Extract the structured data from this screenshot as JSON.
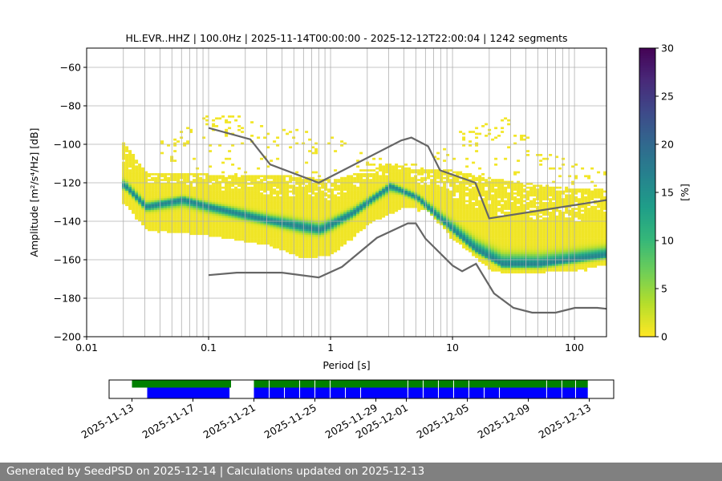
{
  "chart_data": [
    {
      "type": "heatmap",
      "title": "HL.EVR..HHZ | 100.0Hz | 2025-11-14T00:00:00 - 2025-12-12T22:00:04 | 1242 segments",
      "xlabel": "Period [s]",
      "ylabel": "Amplitude [m²/s⁴/Hz] [dB]",
      "xscale": "log",
      "xlim": [
        0.01,
        183
      ],
      "ylim": [
        -200,
        -50
      ],
      "xticks": [
        "0.01",
        "0.1",
        "1",
        "10",
        "100"
      ],
      "yticks": [
        "-60",
        "-80",
        "-100",
        "-120",
        "-140",
        "-160",
        "-180",
        "-200"
      ],
      "grid": true,
      "colorbar": {
        "label": "[%]",
        "range": [
          0,
          30
        ],
        "ticks": [
          "0",
          "5",
          "10",
          "15",
          "20",
          "25",
          "30"
        ],
        "colormap": "viridis_r"
      },
      "psd_mode": [
        [
          0.02,
          -122
        ],
        [
          0.03,
          -133
        ],
        [
          0.06,
          -129
        ],
        [
          0.1,
          -133
        ],
        [
          0.3,
          -140
        ],
        [
          0.8,
          -145
        ],
        [
          1.5,
          -136
        ],
        [
          3,
          -122
        ],
        [
          5,
          -128
        ],
        [
          8,
          -140
        ],
        [
          15,
          -155
        ],
        [
          25,
          -163
        ],
        [
          50,
          -163
        ],
        [
          183,
          -158
        ]
      ],
      "psd_lower": [
        [
          0.02,
          -131
        ],
        [
          0.03,
          -145
        ],
        [
          0.1,
          -148
        ],
        [
          0.3,
          -153
        ],
        [
          0.6,
          -160
        ],
        [
          1,
          -158
        ],
        [
          2,
          -142
        ],
        [
          4,
          -133
        ],
        [
          6,
          -135
        ],
        [
          10,
          -150
        ],
        [
          20,
          -166
        ],
        [
          30,
          -168
        ],
        [
          100,
          -166
        ],
        [
          183,
          -163
        ]
      ],
      "psd_upper": [
        [
          0.02,
          -100
        ],
        [
          0.03,
          -115
        ],
        [
          0.1,
          -116
        ],
        [
          0.5,
          -117
        ],
        [
          1,
          -119
        ],
        [
          3,
          -110
        ],
        [
          5,
          -114
        ],
        [
          10,
          -114
        ],
        [
          20,
          -118
        ],
        [
          100,
          -124
        ],
        [
          183,
          -124
        ]
      ],
      "psd_sparse_upper": [
        [
          0.04,
          -98
        ],
        [
          0.07,
          -88
        ],
        [
          0.1,
          -84
        ],
        [
          0.3,
          -88
        ],
        [
          1,
          -96
        ],
        [
          3,
          -110
        ],
        [
          6,
          -108
        ],
        [
          12,
          -92
        ],
        [
          25,
          -85
        ],
        [
          50,
          -100
        ],
        [
          100,
          -110
        ],
        [
          183,
          -115
        ]
      ],
      "peak_percent": 16,
      "noise_models": [
        {
          "name": "NHNM",
          "color": "#666666",
          "points": [
            [
              0.1,
              -91.5
            ],
            [
              0.22,
              -97.4
            ],
            [
              0.32,
              -110.5
            ],
            [
              0.8,
              -120
            ],
            [
              3.8,
              -98
            ],
            [
              4.6,
              -96.5
            ],
            [
              6.3,
              -101
            ],
            [
              7.9,
              -113.5
            ],
            [
              15.4,
              -120
            ],
            [
              20,
              -138.5
            ],
            [
              183,
              -129
            ]
          ]
        },
        {
          "name": "NLNM",
          "color": "#666666",
          "points": [
            [
              0.1,
              -168
            ],
            [
              0.17,
              -166.7
            ],
            [
              0.4,
              -166.7
            ],
            [
              0.8,
              -169.2
            ],
            [
              1.24,
              -163.7
            ],
            [
              2.4,
              -148.6
            ],
            [
              4.3,
              -141.1
            ],
            [
              5,
              -141.1
            ],
            [
              6,
              -149
            ],
            [
              10,
              -163
            ],
            [
              12,
              -166
            ],
            [
              15.6,
              -162.1
            ],
            [
              21.9,
              -177.5
            ],
            [
              31.6,
              -185
            ],
            [
              45,
              -187.5
            ],
            [
              70,
              -187.5
            ],
            [
              101,
              -185
            ],
            [
              154,
              -185
            ],
            [
              183,
              -185.5
            ]
          ]
        }
      ]
    },
    {
      "type": "timeline",
      "xlim": [
        "2025-11-11.5",
        "2025-12-14.6"
      ],
      "xticks": [
        "2025-11-13",
        "2025-11-17",
        "2025-11-21",
        "2025-11-25",
        "2025-11-29",
        "2025-12-01",
        "2025-12-05",
        "2025-12-09",
        "2025-12-13"
      ],
      "series": [
        {
          "color": "#008000",
          "segments": [
            [
              "2025-11-13.0",
              "2025-11-19.5"
            ],
            [
              "2025-11-21.0",
              "2025-12-12.9"
            ]
          ],
          "gaps": [
            "2025-11-22.0",
            "2025-11-24.0",
            "2025-11-25.0",
            "2025-11-26.0",
            "2025-12-01.1",
            "2025-12-02.1",
            "2025-12-03.1",
            "2025-12-04.1",
            "2025-12-05.1",
            "2025-12-10.2",
            "2025-12-11.2",
            "2025-12-12.1"
          ]
        },
        {
          "color": "#0000ff",
          "segments": [
            [
              "2025-11-14.0",
              "2025-11-19.4"
            ],
            [
              "2025-11-21.0",
              "2025-12-12.9"
            ]
          ],
          "gaps": [
            "2025-11-22.0",
            "2025-11-23.0",
            "2025-11-24.0",
            "2025-11-25.0",
            "2025-11-26.0",
            "2025-11-27.0",
            "2025-11-28.0",
            "2025-12-01.1",
            "2025-12-02.1",
            "2025-12-03.1",
            "2025-12-04.1",
            "2025-12-05.1",
            "2025-12-06.1",
            "2025-12-07.1",
            "2025-12-10.2",
            "2025-12-11.2",
            "2025-12-12.1"
          ]
        }
      ]
    }
  ],
  "footer": "Generated by SeedPSD on 2025-12-14 | Calculations updated on 2025-12-13"
}
